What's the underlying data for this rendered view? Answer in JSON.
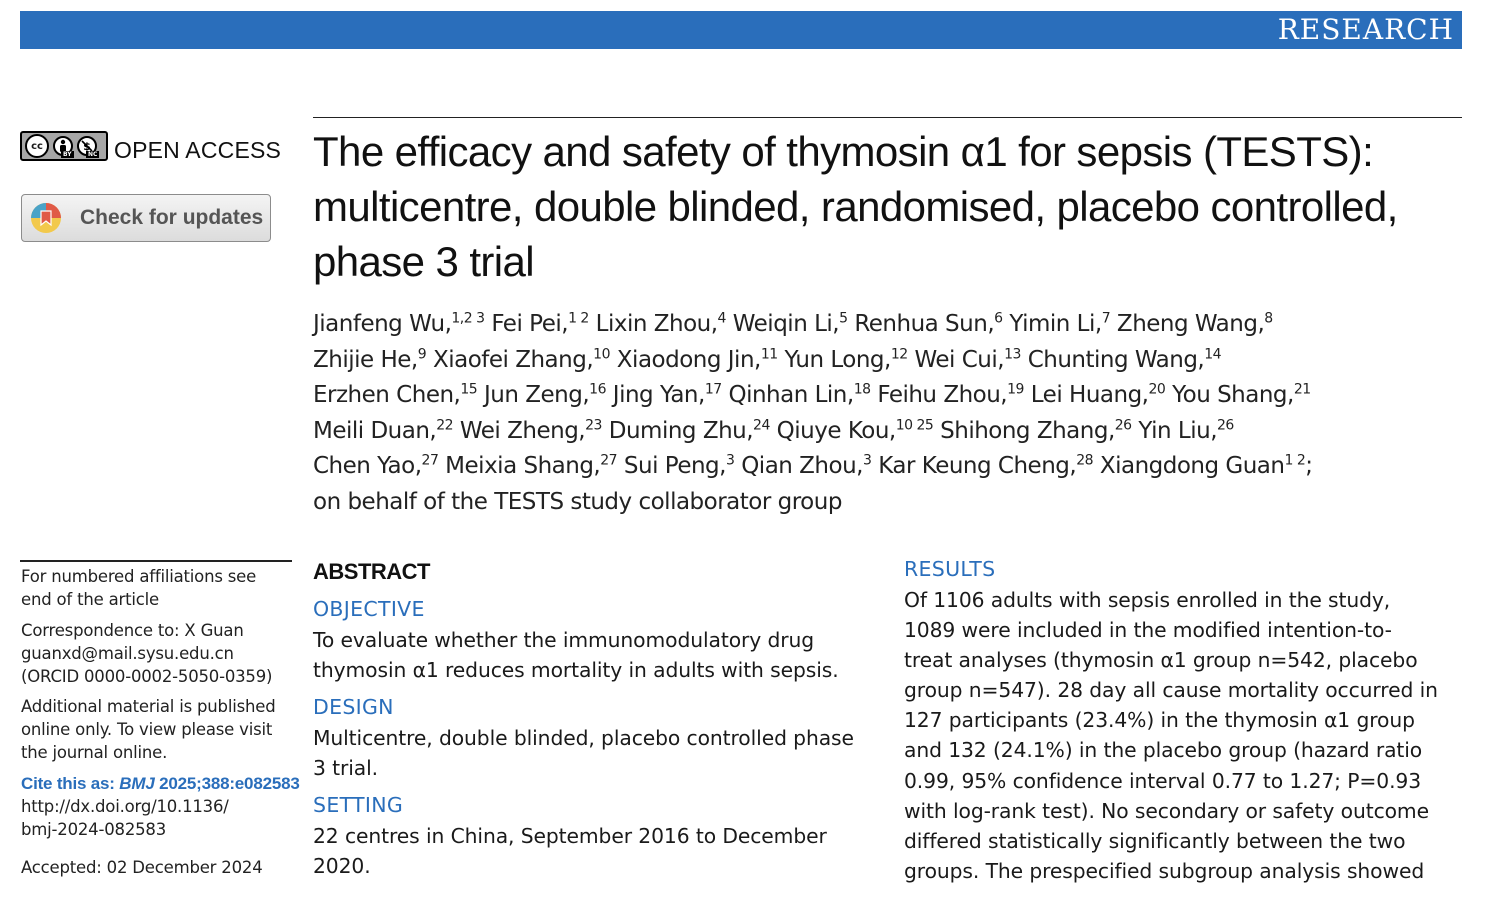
{
  "banner": {
    "label": "RESEARCH",
    "color": "#2a6ebb"
  },
  "license": {
    "cc_icons": [
      "cc-icon",
      "by-icon",
      "nc-icon"
    ],
    "cc_text": "cc",
    "by_text": "BY",
    "nc_text": "NC",
    "open_access": "OPEN ACCESS"
  },
  "updates_button": {
    "label": "Check for updates",
    "icon": "crossmark-icon"
  },
  "title_lines": [
    "The efficacy and safety of thymosin α1 for sepsis (TESTS):",
    "multicentre, double blinded, randomised, placebo controlled,",
    "phase 3 trial"
  ],
  "authors": [
    [
      [
        "Jianfeng Wu,",
        "1,2 3"
      ],
      [
        " Fei Pei,",
        "1 2"
      ],
      [
        " Lixin Zhou,",
        "4"
      ],
      [
        " Weiqin Li,",
        "5"
      ],
      [
        " Renhua Sun,",
        "6"
      ],
      [
        " Yimin Li,",
        "7"
      ],
      [
        " Zheng Wang,",
        "8"
      ]
    ],
    [
      [
        "Zhijie He,",
        "9"
      ],
      [
        " Xiaofei Zhang,",
        "10"
      ],
      [
        " Xiaodong Jin,",
        "11"
      ],
      [
        " Yun Long,",
        "12"
      ],
      [
        " Wei Cui,",
        "13"
      ],
      [
        " Chunting Wang,",
        "14"
      ]
    ],
    [
      [
        "Erzhen Chen,",
        "15"
      ],
      [
        " Jun Zeng,",
        "16"
      ],
      [
        " Jing Yan,",
        "17"
      ],
      [
        " Qinhan Lin,",
        "18"
      ],
      [
        " Feihu Zhou,",
        "19"
      ],
      [
        " Lei Huang,",
        "20"
      ],
      [
        " You Shang,",
        "21"
      ]
    ],
    [
      [
        "Meili Duan,",
        "22"
      ],
      [
        " Wei Zheng,",
        "23"
      ],
      [
        " Duming Zhu,",
        "24"
      ],
      [
        " Qiuye Kou,",
        "10 25"
      ],
      [
        " Shihong Zhang,",
        "26"
      ],
      [
        " Yin Liu,",
        "26"
      ]
    ],
    [
      [
        "Chen Yao,",
        "27"
      ],
      [
        " Meixia Shang,",
        "27"
      ],
      [
        " Sui Peng,",
        "3"
      ],
      [
        " Qian Zhou,",
        "3"
      ],
      [
        " Kar Keung Cheng,",
        "28"
      ],
      [
        " Xiangdong Guan",
        "1 2"
      ],
      [
        ";",
        ""
      ]
    ],
    [
      [
        "on behalf of the TESTS study collaborator group",
        ""
      ]
    ]
  ],
  "sidebar": {
    "affiliations": [
      "For numbered affiliations see",
      "end of the article"
    ],
    "correspondence": [
      "Correspondence to: X Guan",
      "guanxd@mail.sysu.edu.cn",
      "(ORCID 0000-0002-5050-0359)"
    ],
    "additional": [
      "Additional material is published",
      "online only. To view please visit",
      "the journal online."
    ],
    "cite_prefix": "Cite this as: ",
    "cite_journal": "BMJ",
    "cite_ref": " 2025;388:e082583",
    "doi": [
      "http://dx.doi.org/10.1136/",
      "bmj-2024-082583"
    ],
    "accepted": "Accepted: 02 December 2024"
  },
  "abstract": {
    "heading": "ABSTRACT",
    "objective": {
      "heading": "OBJECTIVE",
      "lines": [
        "To evaluate whether the immunomodulatory drug",
        "thymosin α1 reduces mortality in adults with sepsis."
      ]
    },
    "design": {
      "heading": "DESIGN",
      "lines": [
        "Multicentre, double blinded, placebo controlled phase",
        "3 trial."
      ]
    },
    "setting": {
      "heading": "SETTING",
      "lines": [
        "22 centres in China, September 2016 to December",
        "2020."
      ]
    },
    "results": {
      "heading": "RESULTS",
      "lines": [
        "Of 1106 adults with sepsis enrolled in the study,",
        "1089 were included in the modified intention-to-",
        "treat analyses (thymosin α1 group n=542, placebo",
        "group n=547). 28 day all cause mortality occurred in",
        "127 participants (23.4%) in the thymosin α1 group",
        "and 132 (24.1%) in the placebo group (hazard ratio",
        "0.99, 95% confidence interval 0.77 to 1.27; P=0.93",
        "with log-rank test). No secondary or safety outcome",
        "differed statistically significantly between the two",
        "groups. The prespecified subgroup analysis showed"
      ]
    }
  }
}
